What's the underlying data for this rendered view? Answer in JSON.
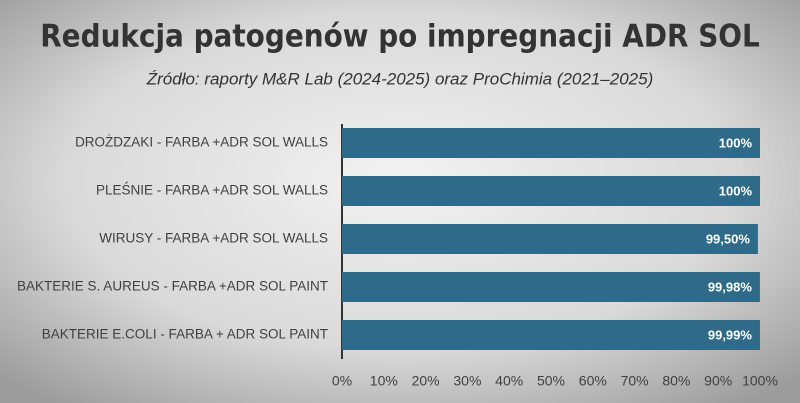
{
  "chart_data": {
    "type": "bar",
    "orientation": "horizontal",
    "title": "Redukcja patogenów po impregnacji ADR SOL",
    "subtitle": "Źródło: raporty M&R Lab (2024-2025)  oraz ProChimia (2021–2025)",
    "categories": [
      "DROŻDZAKI - FARBA +ADR SOL WALLS",
      "PLEŚNIE - FARBA +ADR SOL WALLS",
      "WIRUSY - FARBA +ADR SOL WALLS",
      "BAKTERIE S. AUREUS - FARBA +ADR SOL  PAINT",
      "BAKTERIE E.COLI - FARBA + ADR SOL PAINT"
    ],
    "values": [
      100,
      100,
      99.5,
      99.98,
      99.99
    ],
    "value_labels": [
      "100%",
      "100%",
      "99,50%",
      "99,98%",
      "99,99%"
    ],
    "color": "#2f6b89",
    "xlim": [
      0,
      100
    ],
    "xticks": [
      {
        "value": 0,
        "label": "0%"
      },
      {
        "value": 10,
        "label": "10%"
      },
      {
        "value": 20,
        "label": "20%"
      },
      {
        "value": 30,
        "label": "30%"
      },
      {
        "value": 40,
        "label": "40%"
      },
      {
        "value": 50,
        "label": "50%"
      },
      {
        "value": 60,
        "label": "60%"
      },
      {
        "value": 70,
        "label": "70%"
      },
      {
        "value": 80,
        "label": "80%"
      },
      {
        "value": 90,
        "label": "90%"
      },
      {
        "value": 100,
        "label": "100%"
      }
    ]
  }
}
